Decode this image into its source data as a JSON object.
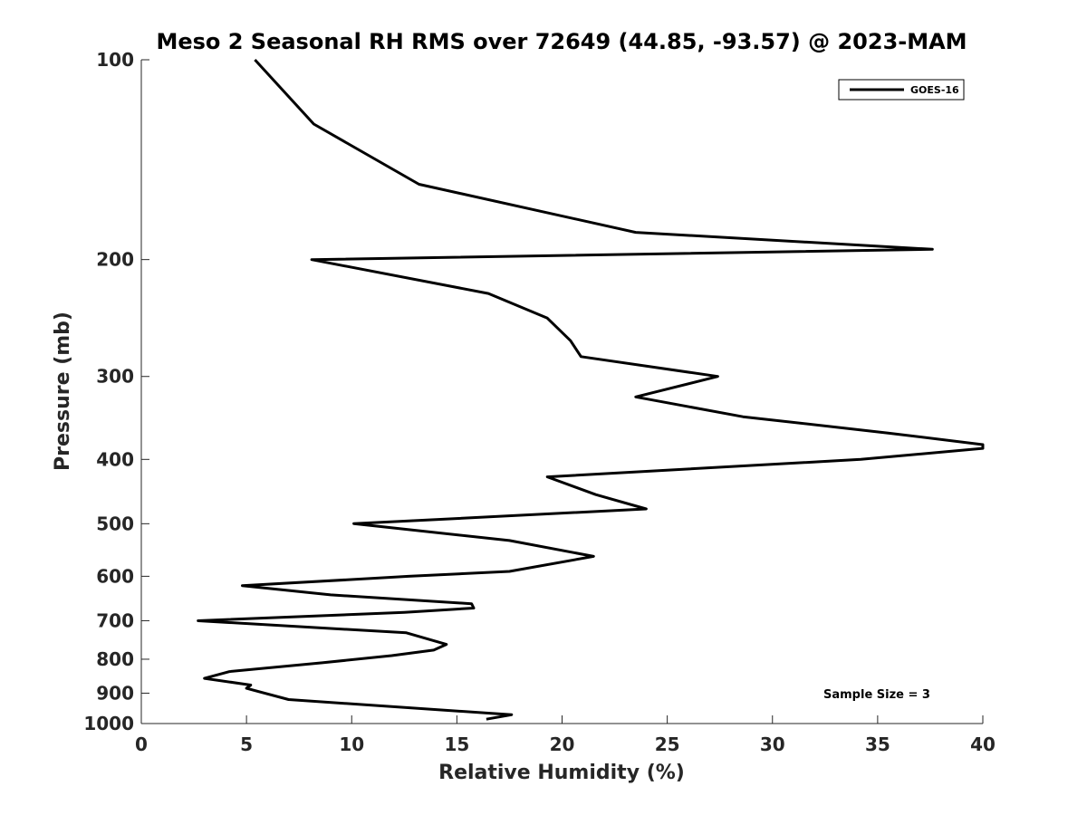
{
  "chart_data": {
    "type": "line",
    "title": "Meso 2 Seasonal RH RMS over 72649 (44.85, -93.57) @ 2023-MAM",
    "xlabel": "Relative Humidity (%)",
    "ylabel": "Pressure (mb)",
    "xlim": [
      0,
      40
    ],
    "ylim": [
      100,
      1000
    ],
    "y_scale": "log",
    "y_reversed": true,
    "x_ticks": [
      0,
      5,
      10,
      15,
      20,
      25,
      30,
      35,
      40
    ],
    "y_ticks": [
      100,
      200,
      300,
      400,
      500,
      600,
      700,
      800,
      900,
      1000
    ],
    "grid": false,
    "legend_position": "top-right",
    "annotation": "Sample Size = 3",
    "series": [
      {
        "name": "GOES-16",
        "color": "#000000",
        "x": [
          5.4,
          8.2,
          13.2,
          23.5,
          37.6,
          8.1,
          16.5,
          19.3,
          20.4,
          20.9,
          27.4,
          23.5,
          28.6,
          35.5,
          40,
          40,
          34.2,
          19.3,
          21.6,
          24.0,
          10.1,
          17.5,
          21.5,
          17.5,
          12.7,
          4.8,
          9.0,
          15.7,
          15.8,
          12.5,
          2.7,
          12.6,
          14.5,
          13.9,
          11.9,
          8.6,
          4.2,
          3.0,
          5.2,
          5.0,
          7.0,
          17.6,
          16.4
        ],
        "y": [
          100,
          125,
          154,
          182,
          193,
          200,
          225,
          245,
          265,
          280,
          300,
          322,
          345,
          365,
          380,
          385,
          400,
          425,
          452,
          475,
          500,
          530,
          560,
          590,
          600,
          620,
          640,
          660,
          670,
          680,
          700,
          730,
          760,
          775,
          790,
          810,
          835,
          855,
          875,
          885,
          920,
          970,
          985
        ]
      }
    ]
  }
}
